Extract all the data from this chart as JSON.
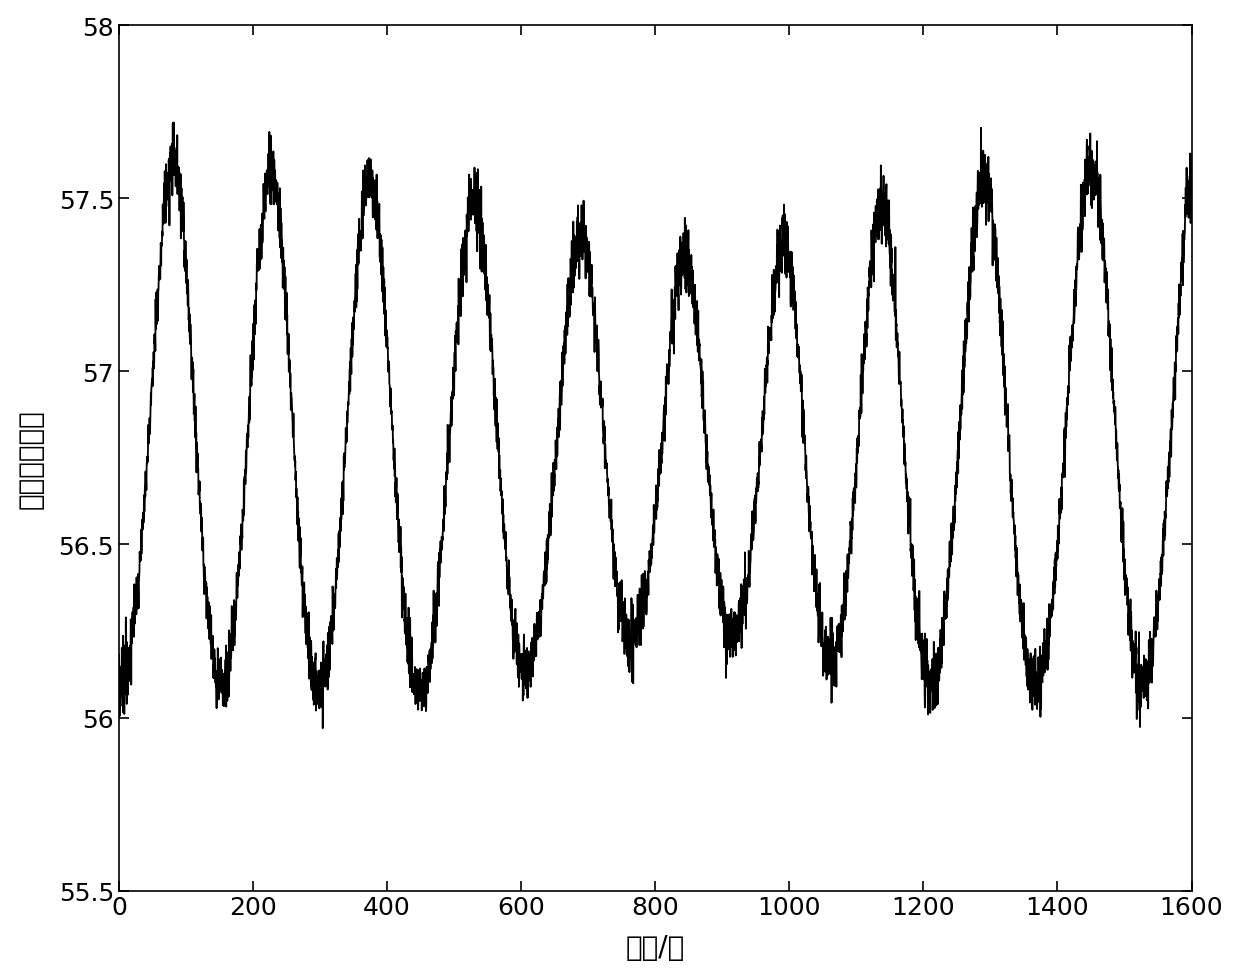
{
  "xlabel": "时间/秒",
  "ylabel": "回路输出信号",
  "xlim": [
    0,
    1600
  ],
  "ylim": [
    55.5,
    58
  ],
  "xticks": [
    0,
    200,
    400,
    600,
    800,
    1000,
    1200,
    1400,
    1600
  ],
  "yticks": [
    55.5,
    56,
    56.5,
    57,
    57.5,
    58
  ],
  "line_color": "#000000",
  "line_width": 1.3,
  "background_color": "#ffffff",
  "xlabel_fontsize": 20,
  "ylabel_fontsize": 20,
  "tick_fontsize": 18
}
